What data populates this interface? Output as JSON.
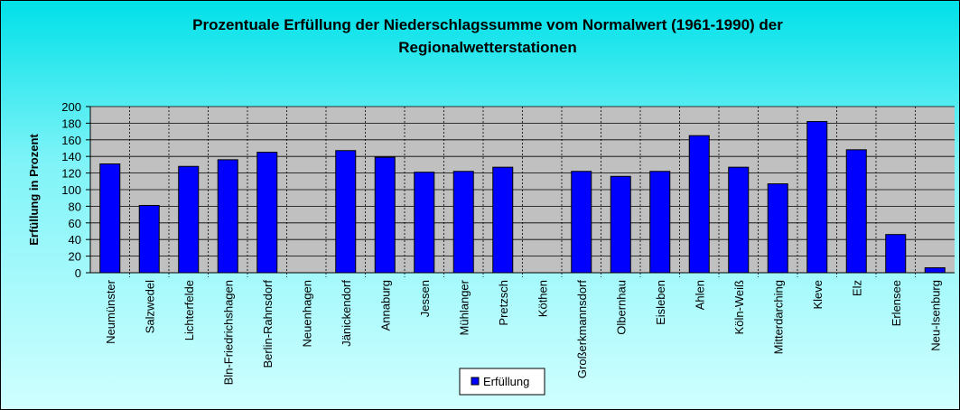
{
  "chart_data": {
    "type": "bar",
    "title": "Prozentuale Erfüllung der Niederschlagssumme vom Normalwert (1961-1990) der Regionalwetterstationen",
    "y_label": "Erfüllung in Prozent",
    "categories": [
      "Neumünster",
      "Salzwedel",
      "Lichterfelde",
      "Bln-Friedrichshagen",
      "Berlin-Rahnsdorf",
      "Neuenhagen",
      "Jänickendorf",
      "Annaburg",
      "Jessen",
      "Mühlanger",
      "Pretzsch",
      "Köthen",
      "Großerkmannsdorf",
      "Olbernhau",
      "Eisleben",
      "Ahlen",
      "Köln-Weiß",
      "Mitterdarching",
      "Kleve",
      "Elz",
      "Erlensee",
      "Neu-Isenburg"
    ],
    "series": [
      {
        "name": "Erfüllung",
        "color": "#0000ff",
        "values": [
          131,
          81,
          128,
          136,
          145,
          null,
          147,
          139,
          121,
          122,
          127,
          null,
          122,
          116,
          122,
          165,
          127,
          107,
          182,
          148,
          46,
          6
        ]
      }
    ],
    "ylim": [
      0,
      200
    ],
    "yticks": [
      0,
      20,
      40,
      60,
      80,
      100,
      120,
      140,
      160,
      180,
      200
    ],
    "grid": true,
    "legend": "bottom"
  }
}
